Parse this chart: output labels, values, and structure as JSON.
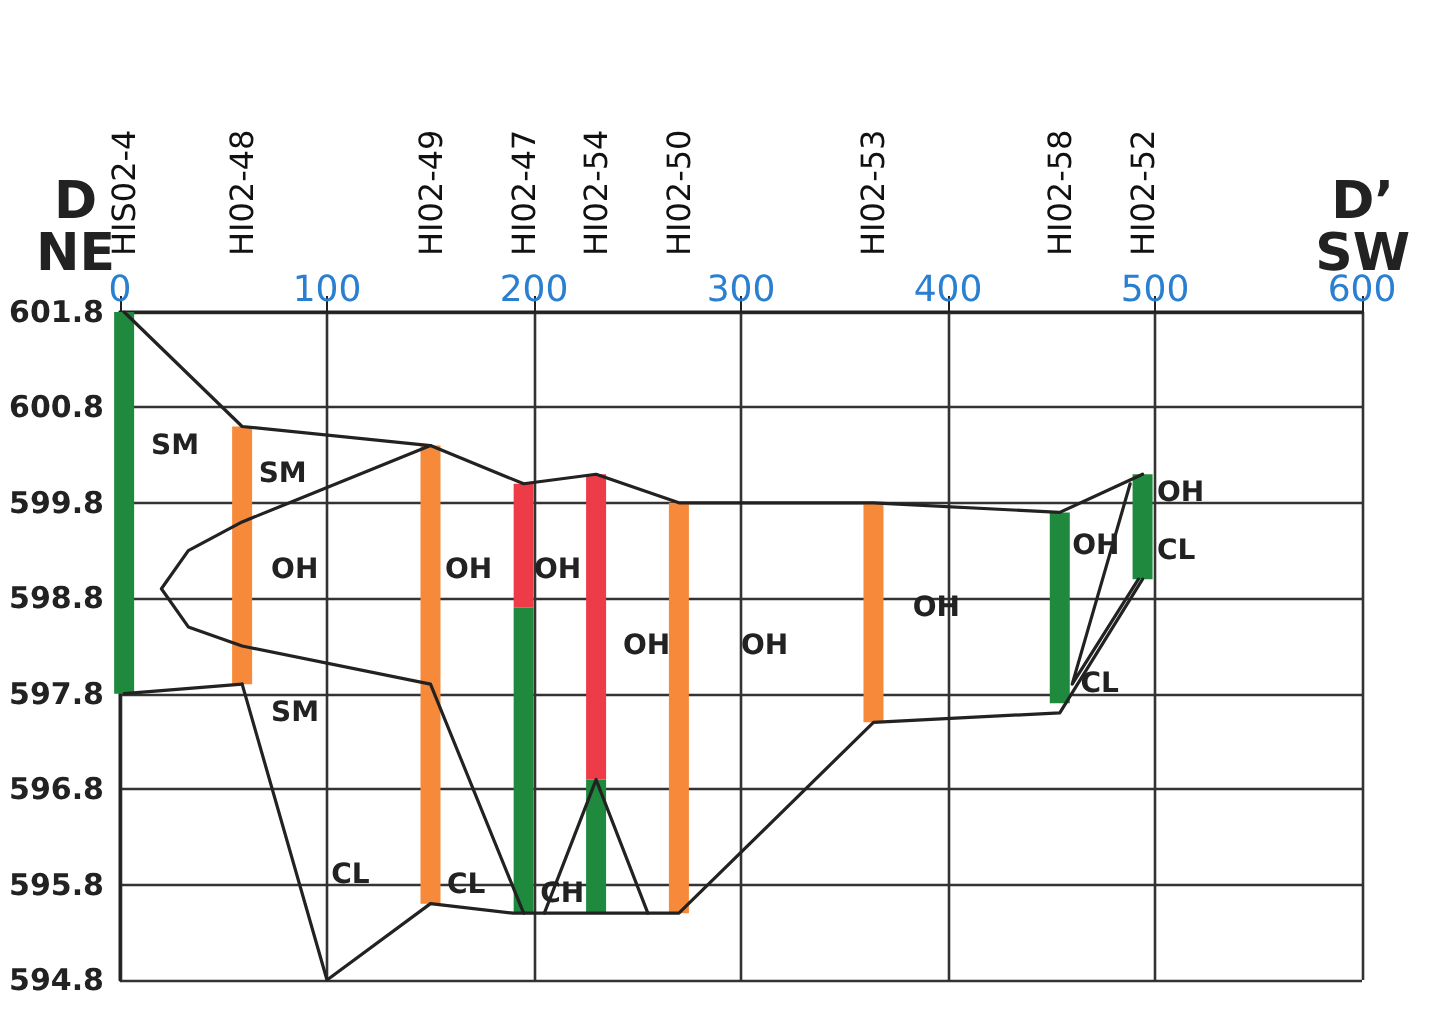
{
  "chart_data": {
    "type": "bar",
    "annotations": [
      "D\nNE",
      "D’\nSW",
      "SM",
      "SM",
      "OH",
      "SM",
      "CL",
      "OH",
      "OH",
      "CL",
      "OH",
      "OH",
      "CH",
      "OH",
      "OH",
      "CL",
      "OH",
      "CL",
      "HIS02-4",
      "HI02-48",
      "HI02-49",
      "HI02-47",
      "HI02-54",
      "HI02-50",
      "HI02-53",
      "HI02-58",
      "HI02-52"
    ],
    "series": [
      {
        "color": "#1f8a3e",
        "x": [
          2,
          195,
          230,
          454,
          494
        ],
        "base": [
          597.8,
          595.5,
          595.5,
          597.7,
          599.0
        ],
        "values": [
          4.0,
          3.2,
          1.4,
          2.0,
          1.1
        ]
      },
      {
        "color": "#f6893a",
        "x": [
          59,
          150,
          270,
          364
        ],
        "base": [
          597.9,
          595.6,
          595.5,
          597.5
        ],
        "values": [
          2.7,
          4.8,
          4.3,
          2.3
        ]
      },
      {
        "color": "#ee3b48",
        "x": [
          195,
          230
        ],
        "base": [
          598.7,
          596.9
        ],
        "values": [
          1.3,
          3.2
        ]
      },
      {
        "type": "line",
        "color": "#222222",
        "x": [
          2,
          59,
          150,
          195,
          230,
          270,
          364,
          454,
          494
        ],
        "values": [
          601.8,
          600.6,
          600.4,
          600.0,
          600.1,
          599.8,
          599.8,
          599.7,
          600.1
        ]
      },
      {
        "type": "line",
        "color": "#222222",
        "x": [
          2,
          59
        ],
        "values": [
          597.8,
          597.9
        ]
      },
      {
        "type": "line",
        "color": "#222222",
        "x": [
          150,
          59,
          33,
          20,
          33,
          59,
          150,
          195
        ],
        "values": [
          600.4,
          599.6,
          599.3,
          598.9,
          598.5,
          598.3,
          597.9,
          595.5
        ]
      },
      {
        "type": "line",
        "color": "#222222",
        "x": [
          59,
          100,
          150,
          190,
          270,
          364,
          454,
          494
        ],
        "values": [
          597.9,
          594.8,
          595.6,
          595.5,
          595.5,
          597.5,
          597.6,
          599.0
        ]
      },
      {
        "type": "line",
        "color": "#222222",
        "x": [
          205,
          230,
          255
        ],
        "values": [
          595.5,
          596.9,
          595.5
        ]
      },
      {
        "type": "line",
        "color": "#222222",
        "x": [
          488,
          460,
          492
        ],
        "values": [
          600.0,
          597.9,
          599.0
        ]
      }
    ],
    "xlim": [
      0,
      600
    ],
    "xticks": [
      0,
      100,
      200,
      300,
      400,
      500,
      600
    ],
    "ylim": [
      594.8,
      601.8
    ],
    "yticks": [
      594.8,
      595.8,
      596.8,
      597.8,
      598.8,
      599.8,
      600.8,
      601.8
    ],
    "grid": true
  }
}
